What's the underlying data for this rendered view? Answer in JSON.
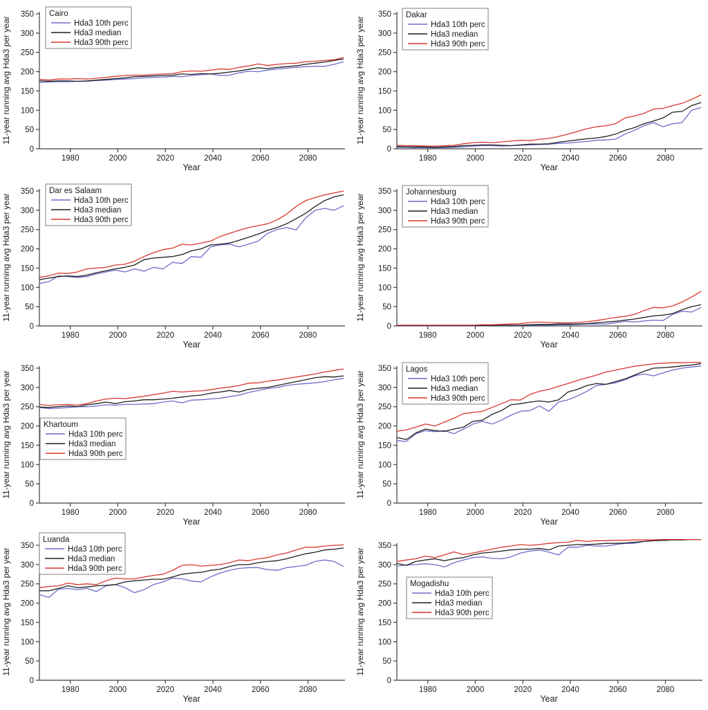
{
  "figure": {
    "background": "#ffffff",
    "axes": {
      "xlabel": "Year",
      "ylabel": "11-year running avg Hda3 per year",
      "x_ticks": [
        1980,
        2000,
        2020,
        2040,
        2060,
        2080
      ],
      "y_ticks": [
        0,
        50,
        100,
        150,
        200,
        250,
        300,
        350
      ],
      "x_range": [
        1967,
        2095
      ],
      "y_range": [
        0,
        370
      ],
      "grid": false,
      "axis_color": "#3f3f3f",
      "years": [
        1967,
        1971,
        1975,
        1979,
        1983,
        1987,
        1991,
        1995,
        1999,
        2003,
        2007,
        2011,
        2015,
        2019,
        2023,
        2027,
        2031,
        2035,
        2039,
        2043,
        2047,
        2051,
        2055,
        2059,
        2063,
        2067,
        2071,
        2075,
        2079,
        2083,
        2087,
        2091,
        2095
      ]
    },
    "legend": {
      "entries": [
        "Hda3 10th perc",
        "Hda3 median",
        "Hda3 90th perc"
      ],
      "border_color": "#7f7f7f",
      "background": "#ffffff"
    },
    "colors": {
      "p10": "#6b6bcb",
      "median": "#1f1f1f",
      "p90": "#d9372e"
    }
  },
  "chart_data": [
    {
      "type": "line",
      "title": "Cairo",
      "legend_position": "upper-left",
      "legend_xy": [
        66,
        10
      ],
      "series": [
        {
          "name": "Hda3 10th perc",
          "color": "#6b6bcb",
          "values": [
            172,
            173,
            174,
            174,
            175,
            175,
            177,
            178,
            180,
            181,
            182,
            184,
            185,
            186,
            188,
            187,
            190,
            192,
            194,
            190,
            191,
            197,
            201,
            200,
            204,
            207,
            209,
            211,
            213,
            214,
            214,
            219,
            226
          ]
        },
        {
          "name": "Hda3 median",
          "color": "#1f1f1f",
          "values": [
            176,
            175,
            176,
            176,
            175,
            176,
            178,
            180,
            182,
            184,
            187,
            188,
            189,
            190,
            191,
            194,
            193,
            195,
            194,
            196,
            199,
            202,
            206,
            210,
            208,
            211,
            213,
            215,
            219,
            222,
            225,
            229,
            233
          ]
        },
        {
          "name": "Hda3 90th perc",
          "color": "#d9372e",
          "values": [
            180,
            178,
            181,
            181,
            182,
            181,
            183,
            185,
            188,
            190,
            191,
            191,
            193,
            194,
            195,
            200,
            202,
            201,
            204,
            207,
            206,
            211,
            215,
            220,
            216,
            219,
            221,
            222,
            226,
            227,
            229,
            231,
            237
          ]
        }
      ]
    },
    {
      "type": "line",
      "title": "Dakar",
      "legend_position": "upper-left",
      "legend_xy": [
        70,
        12
      ],
      "series": [
        {
          "name": "Hda3 10th perc",
          "color": "#6b6bcb",
          "values": [
            4,
            4,
            3,
            3,
            3,
            3,
            4,
            5,
            7,
            8,
            8,
            7,
            8,
            9,
            10,
            11,
            12,
            14,
            15,
            17,
            19,
            22,
            23,
            25,
            38,
            48,
            60,
            68,
            57,
            65,
            68,
            100,
            107
          ]
        },
        {
          "name": "Hda3 median",
          "color": "#1f1f1f",
          "values": [
            6,
            5,
            5,
            5,
            4,
            5,
            6,
            8,
            9,
            10,
            10,
            9,
            8,
            10,
            12,
            12,
            13,
            17,
            20,
            23,
            26,
            28,
            32,
            38,
            48,
            55,
            65,
            72,
            80,
            95,
            97,
            112,
            120
          ]
        },
        {
          "name": "Hda3 90th perc",
          "color": "#d9372e",
          "values": [
            9,
            8,
            8,
            7,
            7,
            8,
            9,
            13,
            16,
            17,
            16,
            18,
            20,
            22,
            21,
            25,
            27,
            32,
            38,
            45,
            52,
            57,
            60,
            65,
            80,
            85,
            92,
            103,
            105,
            112,
            118,
            128,
            140
          ]
        }
      ]
    },
    {
      "type": "line",
      "title": "Dar es Salaam",
      "legend_position": "upper-left",
      "legend_xy": [
        66,
        10
      ],
      "series": [
        {
          "name": "Hda3 10th perc",
          "color": "#6b6bcb",
          "values": [
            110,
            115,
            130,
            128,
            126,
            128,
            135,
            140,
            145,
            140,
            148,
            142,
            152,
            148,
            165,
            162,
            180,
            178,
            205,
            210,
            212,
            205,
            212,
            220,
            240,
            250,
            255,
            249,
            280,
            300,
            305,
            300,
            312
          ]
        },
        {
          "name": "Hda3 median",
          "color": "#1f1f1f",
          "values": [
            120,
            124,
            128,
            130,
            128,
            132,
            138,
            143,
            148,
            152,
            158,
            172,
            176,
            178,
            180,
            185,
            195,
            200,
            210,
            212,
            215,
            222,
            230,
            238,
            248,
            255,
            265,
            278,
            292,
            310,
            325,
            335,
            340
          ]
        },
        {
          "name": "Hda3 90th perc",
          "color": "#d9372e",
          "values": [
            126,
            130,
            137,
            136,
            140,
            148,
            150,
            152,
            158,
            160,
            168,
            180,
            190,
            198,
            202,
            212,
            210,
            215,
            220,
            232,
            240,
            248,
            255,
            260,
            265,
            275,
            290,
            310,
            325,
            333,
            340,
            345,
            350
          ]
        }
      ]
    },
    {
      "type": "line",
      "title": "Johannesburg",
      "legend_position": "upper-left",
      "legend_xy": [
        70,
        12
      ],
      "series": [
        {
          "name": "Hda3 10th perc",
          "color": "#6b6bcb",
          "values": [
            0,
            0,
            0,
            0,
            0,
            0,
            0,
            0,
            0,
            0,
            1,
            1,
            1,
            1,
            2,
            2,
            2,
            3,
            3,
            4,
            5,
            5,
            5,
            8,
            12,
            10,
            13,
            15,
            14,
            30,
            38,
            36,
            48
          ]
        },
        {
          "name": "Hda3 median",
          "color": "#1f1f1f",
          "values": [
            1,
            1,
            1,
            1,
            1,
            1,
            1,
            1,
            1,
            1,
            1,
            2,
            2,
            2,
            3,
            4,
            4,
            5,
            5,
            5,
            6,
            8,
            10,
            12,
            15,
            18,
            22,
            26,
            28,
            32,
            42,
            50,
            55
          ]
        },
        {
          "name": "Hda3 90th perc",
          "color": "#d9372e",
          "values": [
            2,
            2,
            2,
            2,
            2,
            2,
            2,
            2,
            2,
            3,
            3,
            4,
            5,
            6,
            9,
            10,
            9,
            8,
            8,
            9,
            11,
            14,
            18,
            22,
            25,
            30,
            40,
            48,
            47,
            52,
            62,
            75,
            90
          ]
        }
      ]
    },
    {
      "type": "line",
      "title": "Khartoum",
      "legend_position": "mid-left",
      "legend_xy": [
        58,
        92
      ],
      "series": [
        {
          "name": "Hda3 10th perc",
          "color": "#6b6bcb",
          "values": [
            248,
            245,
            246,
            248,
            250,
            250,
            252,
            255,
            254,
            256,
            256,
            257,
            258,
            262,
            265,
            260,
            267,
            268,
            270,
            272,
            276,
            280,
            287,
            292,
            297,
            300,
            305,
            308,
            310,
            312,
            315,
            320,
            323
          ]
        },
        {
          "name": "Hda3 median",
          "color": "#1f1f1f",
          "values": [
            249,
            248,
            250,
            252,
            250,
            255,
            258,
            262,
            258,
            263,
            265,
            268,
            268,
            270,
            272,
            275,
            278,
            280,
            285,
            288,
            292,
            288,
            295,
            298,
            300,
            305,
            310,
            315,
            320,
            325,
            328,
            327,
            330
          ]
        },
        {
          "name": "Hda3 90th perc",
          "color": "#d9372e",
          "values": [
            256,
            253,
            255,
            256,
            254,
            258,
            265,
            270,
            272,
            271,
            274,
            277,
            281,
            285,
            290,
            288,
            290,
            291,
            294,
            298,
            301,
            305,
            311,
            312,
            316,
            319,
            323,
            327,
            331,
            335,
            340,
            344,
            348
          ]
        }
      ]
    },
    {
      "type": "line",
      "title": "Lagos",
      "legend_position": "upper-left",
      "legend_xy": [
        70,
        12
      ],
      "series": [
        {
          "name": "Hda3 10th perc",
          "color": "#6b6bcb",
          "values": [
            162,
            160,
            180,
            188,
            185,
            188,
            180,
            192,
            205,
            212,
            205,
            215,
            228,
            238,
            240,
            252,
            238,
            262,
            268,
            278,
            290,
            305,
            308,
            312,
            320,
            330,
            335,
            330,
            338,
            345,
            350,
            353,
            356
          ]
        },
        {
          "name": "Hda3 median",
          "color": "#1f1f1f",
          "values": [
            170,
            165,
            182,
            192,
            188,
            186,
            192,
            197,
            212,
            215,
            230,
            240,
            255,
            258,
            262,
            265,
            262,
            268,
            288,
            295,
            305,
            310,
            308,
            315,
            322,
            332,
            342,
            350,
            351,
            353,
            356,
            358,
            362
          ]
        },
        {
          "name": "Hda3 90th perc",
          "color": "#d9372e",
          "values": [
            186,
            190,
            197,
            205,
            200,
            210,
            220,
            232,
            235,
            238,
            248,
            258,
            268,
            267,
            282,
            290,
            295,
            303,
            310,
            318,
            325,
            332,
            340,
            345,
            350,
            355,
            358,
            361,
            363,
            364,
            364,
            365,
            365
          ]
        }
      ]
    },
    {
      "type": "line",
      "title": "Luanda",
      "legend_position": "upper-left",
      "legend_xy": [
        57,
        2
      ],
      "series": [
        {
          "name": "Hda3 10th perc",
          "color": "#6b6bcb",
          "values": [
            222,
            215,
            236,
            238,
            235,
            238,
            230,
            245,
            248,
            240,
            227,
            235,
            248,
            255,
            265,
            263,
            257,
            255,
            268,
            278,
            285,
            290,
            292,
            292,
            287,
            285,
            292,
            295,
            298,
            308,
            312,
            308,
            295
          ]
        },
        {
          "name": "Hda3 median",
          "color": "#1f1f1f",
          "values": [
            232,
            232,
            238,
            245,
            240,
            242,
            245,
            246,
            248,
            255,
            258,
            260,
            262,
            262,
            268,
            275,
            278,
            280,
            285,
            288,
            295,
            300,
            300,
            305,
            308,
            310,
            315,
            322,
            328,
            332,
            338,
            340,
            343
          ]
        },
        {
          "name": "Hda3 90th perc",
          "color": "#d9372e",
          "values": [
            240,
            243,
            245,
            252,
            248,
            250,
            248,
            258,
            265,
            263,
            263,
            268,
            272,
            275,
            285,
            298,
            300,
            296,
            298,
            300,
            305,
            312,
            310,
            315,
            318,
            325,
            330,
            338,
            345,
            345,
            348,
            350,
            351
          ]
        }
      ]
    },
    {
      "type": "line",
      "title": "Mogadishu",
      "legend_position": "mid-left",
      "legend_xy": [
        76,
        66
      ],
      "series": [
        {
          "name": "Hda3 10th perc",
          "color": "#6b6bcb",
          "values": [
            296,
            299,
            300,
            302,
            300,
            294,
            305,
            312,
            318,
            320,
            316,
            315,
            320,
            330,
            335,
            338,
            332,
            325,
            345,
            345,
            350,
            348,
            348,
            352,
            355,
            355,
            360,
            362,
            363,
            364,
            364,
            365,
            365
          ]
        },
        {
          "name": "Hda3 median",
          "color": "#1f1f1f",
          "values": [
            303,
            298,
            308,
            312,
            315,
            310,
            315,
            318,
            325,
            330,
            332,
            335,
            338,
            340,
            340,
            342,
            338,
            348,
            350,
            352,
            352,
            353,
            355,
            355,
            356,
            358,
            360,
            362,
            363,
            364,
            364,
            365,
            365
          ]
        },
        {
          "name": "Hda3 90th perc",
          "color": "#d9372e",
          "values": [
            308,
            312,
            315,
            322,
            318,
            325,
            333,
            326,
            330,
            335,
            340,
            345,
            348,
            352,
            350,
            352,
            355,
            357,
            358,
            363,
            360,
            362,
            362,
            363,
            363,
            364,
            364,
            364,
            365,
            365,
            365,
            365,
            365
          ]
        }
      ]
    }
  ]
}
